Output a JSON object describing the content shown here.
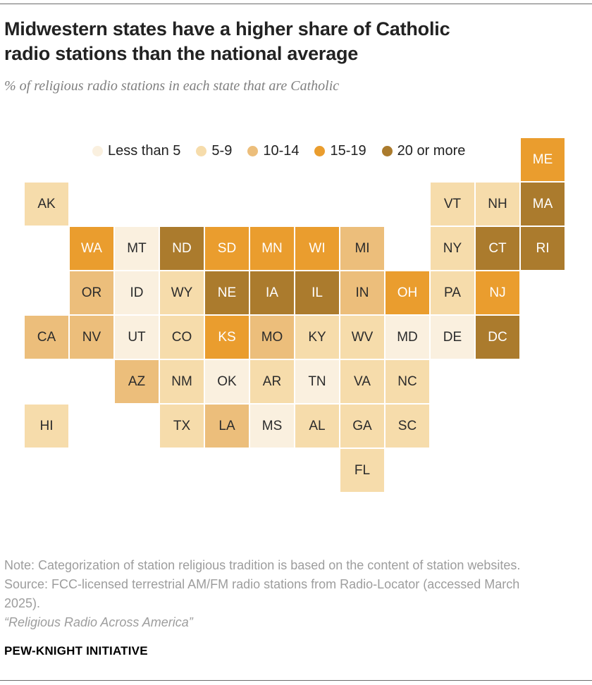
{
  "header": {
    "title_line1": "Midwestern states have a higher share of Catholic",
    "title_line2": "radio stations than the national average",
    "subtitle": "% of religious radio stations in each state that are Catholic"
  },
  "chart_data": {
    "type": "heatmap",
    "subtype": "us-state-tile-cartogram",
    "title": "Midwestern states have a higher share of Catholic radio stations than the national average",
    "subtitle": "% of religious radio stations in each state that are Catholic",
    "legend_position": "top",
    "categories": [
      "Less than 5",
      "5-9",
      "10-14",
      "15-19",
      "20 or more"
    ],
    "legend": [
      {
        "label": "Less than 5",
        "color": "#faf0df",
        "text_color": "#2b2b2b"
      },
      {
        "label": "5-9",
        "color": "#f6dcab",
        "text_color": "#2b2b2b"
      },
      {
        "label": "10-14",
        "color": "#ecbe7b",
        "text_color": "#2b2b2b"
      },
      {
        "label": "15-19",
        "color": "#ea9d2e",
        "text_color": "#ffffff"
      },
      {
        "label": "20 or more",
        "color": "#ab7b2d",
        "text_color": "#ffffff"
      }
    ],
    "states": [
      {
        "abbr": "ME",
        "row": 0,
        "col": 11,
        "category": "15-19"
      },
      {
        "abbr": "AK",
        "row": 1,
        "col": 0,
        "category": "5-9"
      },
      {
        "abbr": "VT",
        "row": 1,
        "col": 9,
        "category": "5-9"
      },
      {
        "abbr": "NH",
        "row": 1,
        "col": 10,
        "category": "5-9"
      },
      {
        "abbr": "MA",
        "row": 1,
        "col": 11,
        "category": "20 or more"
      },
      {
        "abbr": "WA",
        "row": 2,
        "col": 1,
        "category": "15-19"
      },
      {
        "abbr": "MT",
        "row": 2,
        "col": 2,
        "category": "Less than 5"
      },
      {
        "abbr": "ND",
        "row": 2,
        "col": 3,
        "category": "20 or more"
      },
      {
        "abbr": "SD",
        "row": 2,
        "col": 4,
        "category": "15-19"
      },
      {
        "abbr": "MN",
        "row": 2,
        "col": 5,
        "category": "15-19"
      },
      {
        "abbr": "WI",
        "row": 2,
        "col": 6,
        "category": "15-19"
      },
      {
        "abbr": "MI",
        "row": 2,
        "col": 7,
        "category": "10-14"
      },
      {
        "abbr": "NY",
        "row": 2,
        "col": 9,
        "category": "5-9"
      },
      {
        "abbr": "CT",
        "row": 2,
        "col": 10,
        "category": "20 or more"
      },
      {
        "abbr": "RI",
        "row": 2,
        "col": 11,
        "category": "20 or more"
      },
      {
        "abbr": "OR",
        "row": 3,
        "col": 1,
        "category": "10-14"
      },
      {
        "abbr": "ID",
        "row": 3,
        "col": 2,
        "category": "Less than 5"
      },
      {
        "abbr": "WY",
        "row": 3,
        "col": 3,
        "category": "5-9"
      },
      {
        "abbr": "NE",
        "row": 3,
        "col": 4,
        "category": "20 or more"
      },
      {
        "abbr": "IA",
        "row": 3,
        "col": 5,
        "category": "20 or more"
      },
      {
        "abbr": "IL",
        "row": 3,
        "col": 6,
        "category": "20 or more"
      },
      {
        "abbr": "IN",
        "row": 3,
        "col": 7,
        "category": "10-14"
      },
      {
        "abbr": "OH",
        "row": 3,
        "col": 8,
        "category": "15-19"
      },
      {
        "abbr": "PA",
        "row": 3,
        "col": 9,
        "category": "5-9"
      },
      {
        "abbr": "NJ",
        "row": 3,
        "col": 10,
        "category": "15-19"
      },
      {
        "abbr": "CA",
        "row": 4,
        "col": 0,
        "category": "10-14"
      },
      {
        "abbr": "NV",
        "row": 4,
        "col": 1,
        "category": "10-14"
      },
      {
        "abbr": "UT",
        "row": 4,
        "col": 2,
        "category": "Less than 5"
      },
      {
        "abbr": "CO",
        "row": 4,
        "col": 3,
        "category": "5-9"
      },
      {
        "abbr": "KS",
        "row": 4,
        "col": 4,
        "category": "15-19"
      },
      {
        "abbr": "MO",
        "row": 4,
        "col": 5,
        "category": "10-14"
      },
      {
        "abbr": "KY",
        "row": 4,
        "col": 6,
        "category": "5-9"
      },
      {
        "abbr": "WV",
        "row": 4,
        "col": 7,
        "category": "5-9"
      },
      {
        "abbr": "MD",
        "row": 4,
        "col": 8,
        "category": "Less than 5"
      },
      {
        "abbr": "DE",
        "row": 4,
        "col": 9,
        "category": "Less than 5"
      },
      {
        "abbr": "DC",
        "row": 4,
        "col": 10,
        "category": "20 or more"
      },
      {
        "abbr": "AZ",
        "row": 5,
        "col": 2,
        "category": "10-14"
      },
      {
        "abbr": "NM",
        "row": 5,
        "col": 3,
        "category": "5-9"
      },
      {
        "abbr": "OK",
        "row": 5,
        "col": 4,
        "category": "Less than 5"
      },
      {
        "abbr": "AR",
        "row": 5,
        "col": 5,
        "category": "5-9"
      },
      {
        "abbr": "TN",
        "row": 5,
        "col": 6,
        "category": "Less than 5"
      },
      {
        "abbr": "VA",
        "row": 5,
        "col": 7,
        "category": "5-9"
      },
      {
        "abbr": "NC",
        "row": 5,
        "col": 8,
        "category": "5-9"
      },
      {
        "abbr": "HI",
        "row": 6,
        "col": 0,
        "category": "5-9"
      },
      {
        "abbr": "TX",
        "row": 6,
        "col": 3,
        "category": "5-9"
      },
      {
        "abbr": "LA",
        "row": 6,
        "col": 4,
        "category": "10-14"
      },
      {
        "abbr": "MS",
        "row": 6,
        "col": 5,
        "category": "Less than 5"
      },
      {
        "abbr": "AL",
        "row": 6,
        "col": 6,
        "category": "5-9"
      },
      {
        "abbr": "GA",
        "row": 6,
        "col": 7,
        "category": "5-9"
      },
      {
        "abbr": "SC",
        "row": 6,
        "col": 8,
        "category": "5-9"
      },
      {
        "abbr": "FL",
        "row": 7,
        "col": 7,
        "category": "5-9"
      }
    ]
  },
  "footer": {
    "note": "Note: Categorization of station religious tradition is based on the content of station websites.",
    "source_line1": "Source: FCC-licensed terrestrial AM/FM radio stations from Radio-Locator (accessed March",
    "source_line2": "2025).",
    "credit": "“Religious Radio Across America”",
    "brand": "PEW-KNIGHT INITIATIVE"
  }
}
